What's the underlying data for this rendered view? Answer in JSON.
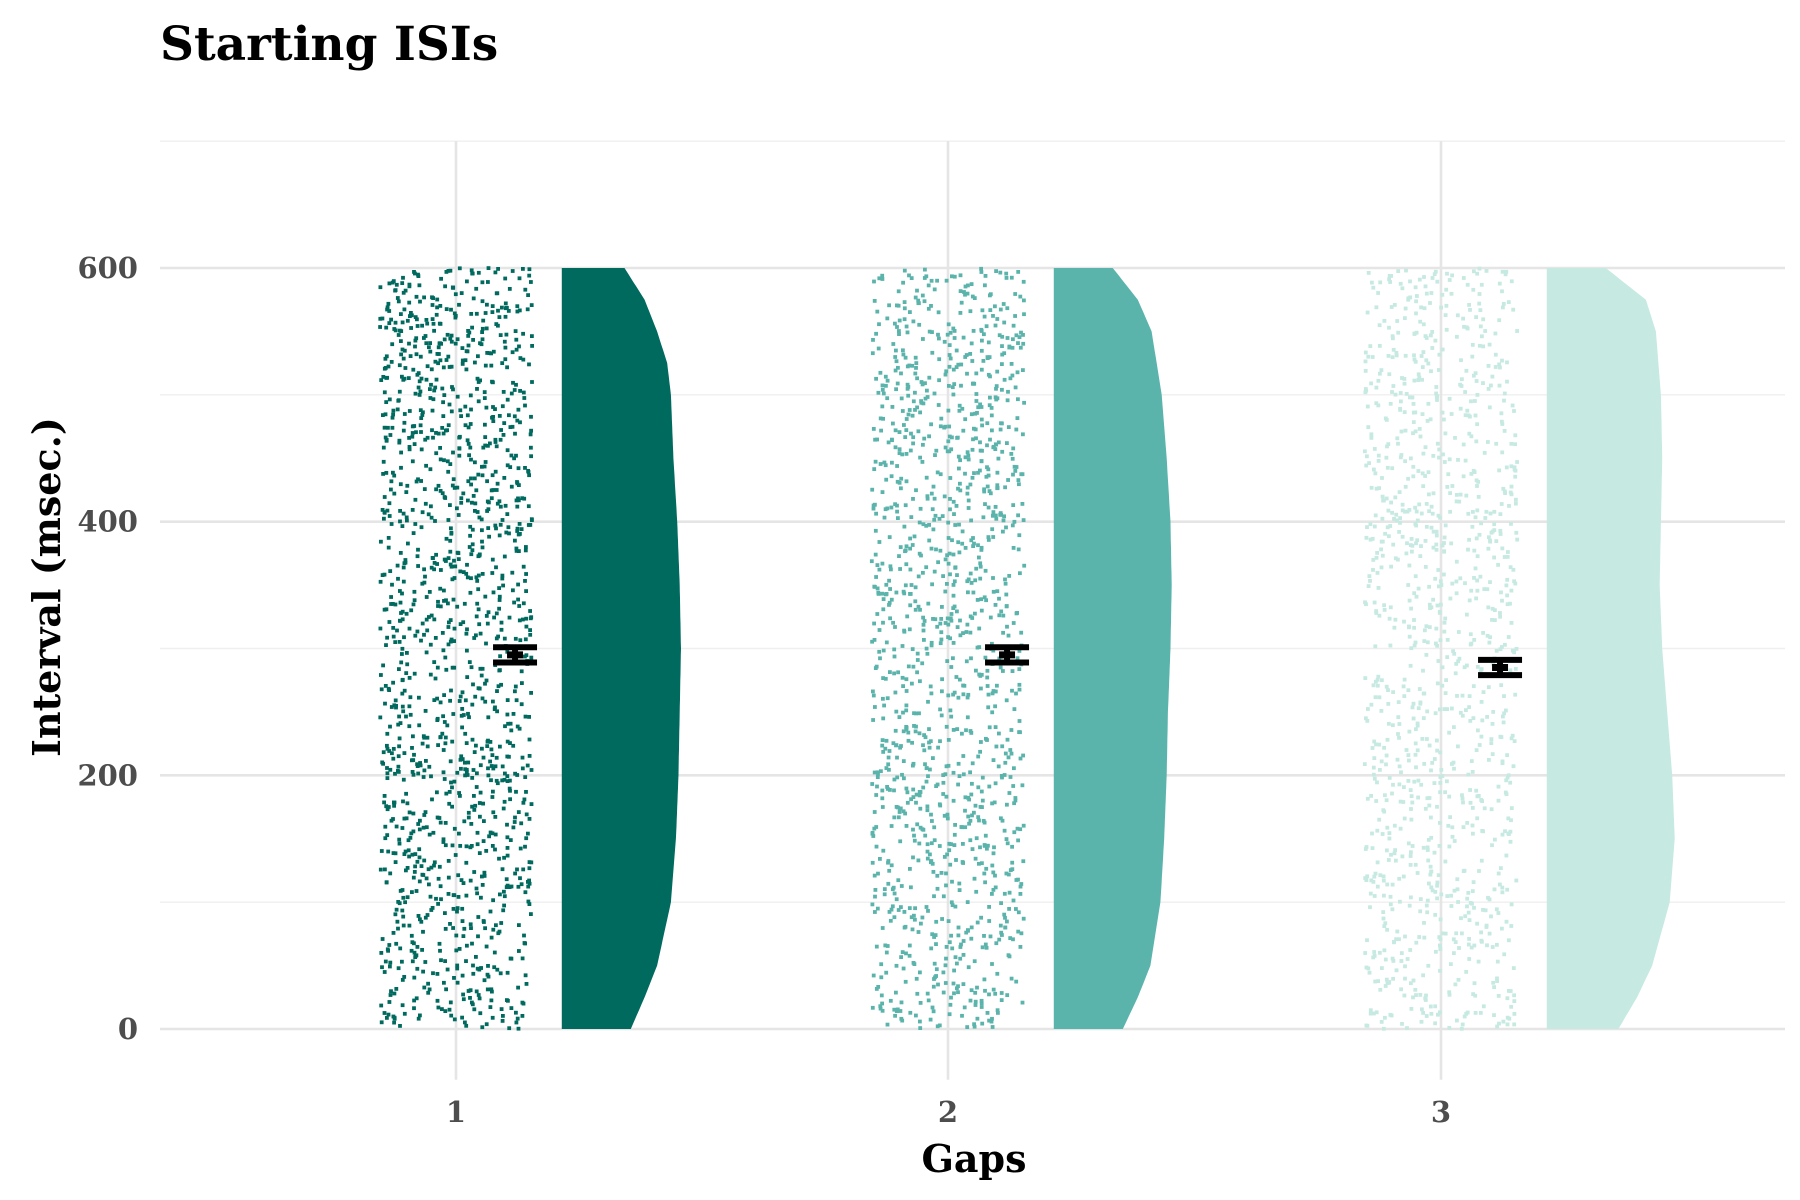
{
  "chart_data": {
    "type": "raincloud",
    "title": "Starting ISIs",
    "xlabel": "Gaps",
    "ylabel": "Interval (msec.)",
    "categories": [
      "1",
      "2",
      "3"
    ],
    "ylim": [
      -40,
      700
    ],
    "yticks": [
      0,
      200,
      400,
      600
    ],
    "grid": true,
    "legend": "none",
    "groups": [
      {
        "category": "1",
        "color": "#006a5f",
        "mean": 295,
        "ci": [
          289,
          301
        ],
        "point_count": 1400,
        "range": [
          0,
          600
        ],
        "density_profile": [
          [
            0,
            0.55
          ],
          [
            25,
            0.66
          ],
          [
            50,
            0.76
          ],
          [
            100,
            0.87
          ],
          [
            150,
            0.91
          ],
          [
            200,
            0.93
          ],
          [
            250,
            0.94
          ],
          [
            300,
            0.95
          ],
          [
            350,
            0.94
          ],
          [
            400,
            0.92
          ],
          [
            450,
            0.89
          ],
          [
            500,
            0.87
          ],
          [
            525,
            0.84
          ],
          [
            550,
            0.76
          ],
          [
            575,
            0.66
          ],
          [
            600,
            0.5
          ]
        ]
      },
      {
        "category": "2",
        "color": "#5bb4ab",
        "mean": 295,
        "ci": [
          289,
          301
        ],
        "point_count": 1300,
        "range": [
          0,
          600
        ],
        "density_profile": [
          [
            0,
            0.55
          ],
          [
            25,
            0.67
          ],
          [
            50,
            0.77
          ],
          [
            100,
            0.85
          ],
          [
            150,
            0.88
          ],
          [
            200,
            0.9
          ],
          [
            250,
            0.91
          ],
          [
            300,
            0.93
          ],
          [
            350,
            0.94
          ],
          [
            400,
            0.93
          ],
          [
            450,
            0.9
          ],
          [
            500,
            0.86
          ],
          [
            550,
            0.78
          ],
          [
            575,
            0.67
          ],
          [
            600,
            0.47
          ]
        ]
      },
      {
        "category": "3",
        "color": "#c6e9e2",
        "mean": 285,
        "ci": [
          279,
          291
        ],
        "point_count": 1100,
        "range": [
          0,
          600
        ],
        "density_profile": [
          [
            0,
            0.57
          ],
          [
            25,
            0.72
          ],
          [
            50,
            0.84
          ],
          [
            100,
            0.98
          ],
          [
            150,
            1.02
          ],
          [
            200,
            1.0
          ],
          [
            250,
            0.96
          ],
          [
            300,
            0.92
          ],
          [
            350,
            0.9
          ],
          [
            400,
            0.91
          ],
          [
            450,
            0.92
          ],
          [
            500,
            0.91
          ],
          [
            550,
            0.87
          ],
          [
            575,
            0.79
          ],
          [
            600,
            0.47
          ]
        ]
      }
    ]
  }
}
